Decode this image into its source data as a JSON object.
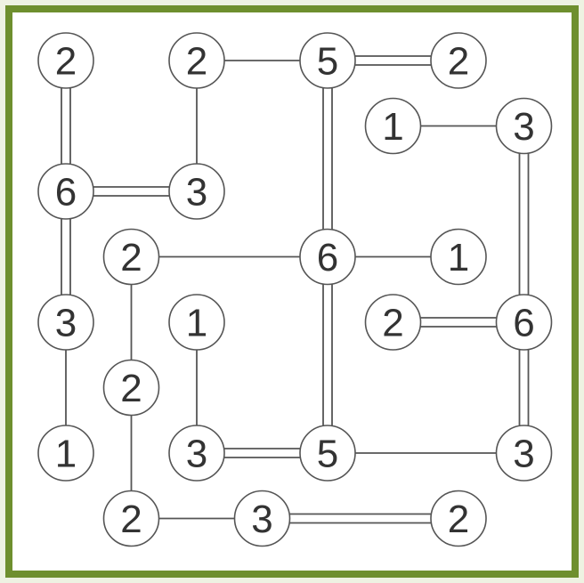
{
  "puzzle": {
    "type": "hashiwokakero",
    "colors": {
      "frame": "#6e8f2e",
      "background": "#ffffff",
      "line": "#555555",
      "text": "#333333"
    },
    "rows": [
      0,
      1,
      2,
      3,
      4,
      5,
      6,
      7
    ],
    "cols": [
      0,
      1,
      2,
      3,
      4,
      5,
      6,
      7
    ],
    "islands": [
      {
        "id": "a",
        "value": "2",
        "row": 0,
        "col": 0
      },
      {
        "id": "b",
        "value": "2",
        "row": 0,
        "col": 2
      },
      {
        "id": "c",
        "value": "5",
        "row": 0,
        "col": 4
      },
      {
        "id": "d",
        "value": "2",
        "row": 0,
        "col": 6
      },
      {
        "id": "e",
        "value": "1",
        "row": 1,
        "col": 5
      },
      {
        "id": "f",
        "value": "3",
        "row": 1,
        "col": 7
      },
      {
        "id": "g",
        "value": "6",
        "row": 2,
        "col": 0
      },
      {
        "id": "h",
        "value": "3",
        "row": 2,
        "col": 2
      },
      {
        "id": "i",
        "value": "2",
        "row": 3,
        "col": 1
      },
      {
        "id": "j",
        "value": "6",
        "row": 3,
        "col": 4
      },
      {
        "id": "k",
        "value": "1",
        "row": 3,
        "col": 6
      },
      {
        "id": "l",
        "value": "3",
        "row": 4,
        "col": 0
      },
      {
        "id": "m",
        "value": "1",
        "row": 4,
        "col": 2
      },
      {
        "id": "n",
        "value": "2",
        "row": 4,
        "col": 5
      },
      {
        "id": "o",
        "value": "6",
        "row": 4,
        "col": 7
      },
      {
        "id": "p",
        "value": "2",
        "row": 5,
        "col": 1
      },
      {
        "id": "q",
        "value": "1",
        "row": 6,
        "col": 0
      },
      {
        "id": "r",
        "value": "3",
        "row": 6,
        "col": 2
      },
      {
        "id": "s",
        "value": "5",
        "row": 6,
        "col": 4
      },
      {
        "id": "t",
        "value": "3",
        "row": 6,
        "col": 7
      },
      {
        "id": "u",
        "value": "2",
        "row": 7,
        "col": 1
      },
      {
        "id": "v",
        "value": "3",
        "row": 7,
        "col": 3
      },
      {
        "id": "w",
        "value": "2",
        "row": 7,
        "col": 6
      }
    ],
    "bridges": [
      {
        "from": "a",
        "to": "g",
        "count": 2
      },
      {
        "from": "b",
        "to": "c",
        "count": 1
      },
      {
        "from": "c",
        "to": "d",
        "count": 2
      },
      {
        "from": "b",
        "to": "h",
        "count": 1
      },
      {
        "from": "c",
        "to": "j",
        "count": 2
      },
      {
        "from": "e",
        "to": "f",
        "count": 1
      },
      {
        "from": "f",
        "to": "o",
        "count": 2
      },
      {
        "from": "g",
        "to": "h",
        "count": 2
      },
      {
        "from": "g",
        "to": "l",
        "count": 2
      },
      {
        "from": "i",
        "to": "j",
        "count": 1
      },
      {
        "from": "j",
        "to": "k",
        "count": 1
      },
      {
        "from": "i",
        "to": "p",
        "count": 1
      },
      {
        "from": "j",
        "to": "s",
        "count": 2
      },
      {
        "from": "n",
        "to": "o",
        "count": 2
      },
      {
        "from": "o",
        "to": "t",
        "count": 2
      },
      {
        "from": "l",
        "to": "q",
        "count": 1
      },
      {
        "from": "m",
        "to": "r",
        "count": 1
      },
      {
        "from": "p",
        "to": "u",
        "count": 1
      },
      {
        "from": "r",
        "to": "s",
        "count": 2
      },
      {
        "from": "s",
        "to": "t",
        "count": 1
      },
      {
        "from": "u",
        "to": "v",
        "count": 1
      },
      {
        "from": "v",
        "to": "w",
        "count": 2
      }
    ]
  }
}
